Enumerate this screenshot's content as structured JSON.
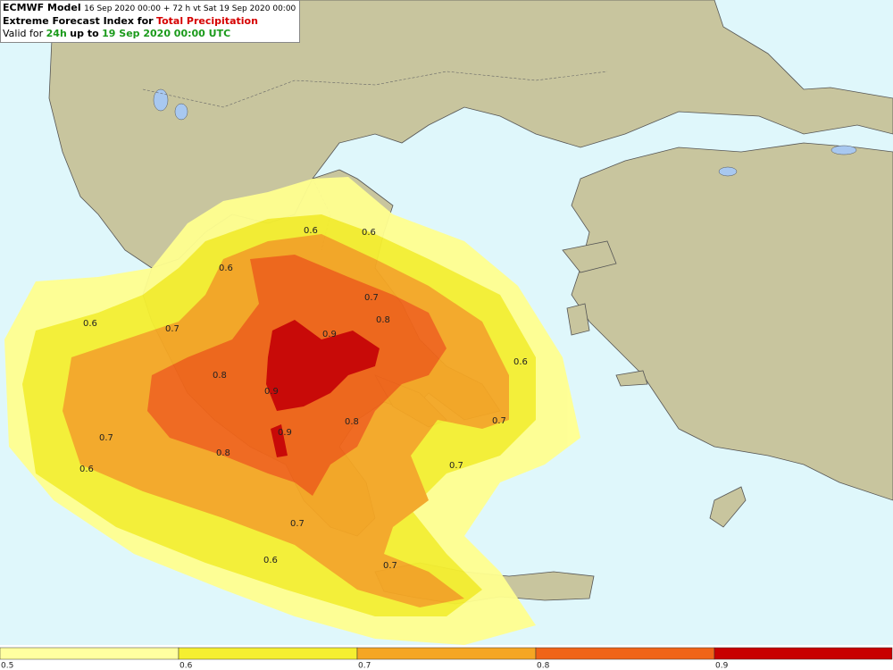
{
  "header": {
    "model": "ECMWF Model",
    "run_info": "16 Sep 2020 00:00 + 72 h vt Sat 19 Sep 2020 00:00",
    "index_title": "Extreme Forecast Index for",
    "parameter": "Total Precipitation",
    "valid_prefix": "Valid for",
    "period": "24h",
    "valid_middle": "up to",
    "valid_time": "19 Sep 2020 00:00 UTC"
  },
  "contour_labels": [
    "0.6",
    "0.6",
    "0.6",
    "0.7",
    "0.8",
    "0.6",
    "0.7",
    "0.9",
    "0.6",
    "0.8",
    "0.9",
    "0.8",
    "0.7",
    "0.9",
    "0.7",
    "0.8",
    "0.7",
    "0.6",
    "0.7",
    "0.6",
    "0.7"
  ],
  "colorbar": {
    "labels": [
      "0.5",
      "0.6",
      "0.7",
      "0.8",
      "0.9"
    ]
  }
}
